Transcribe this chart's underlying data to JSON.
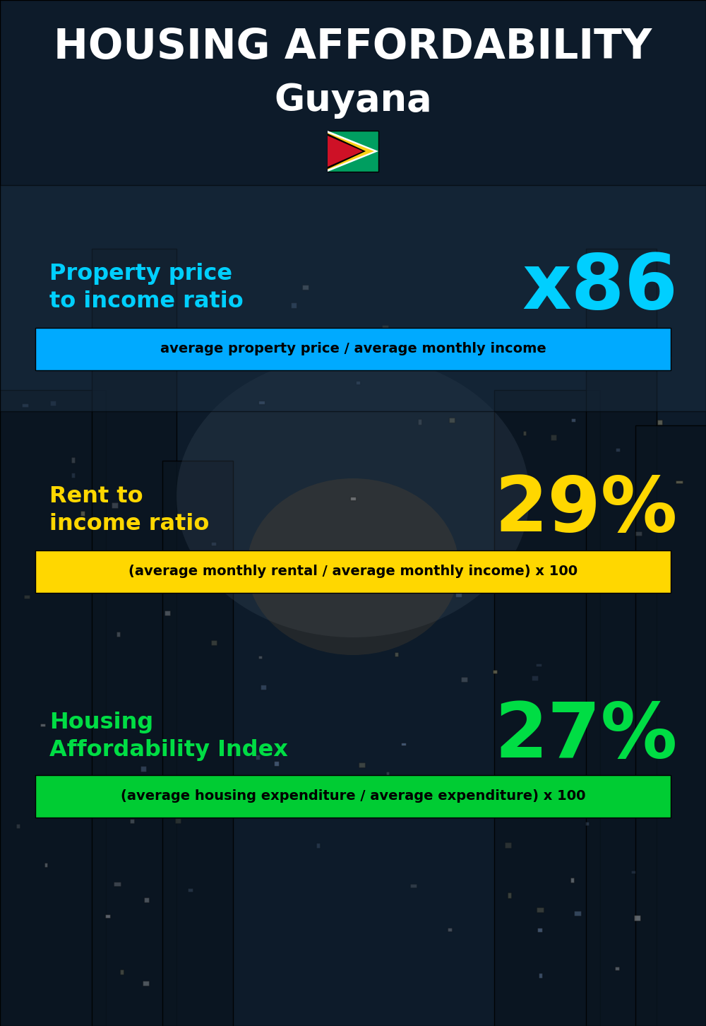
{
  "title_main": "HOUSING AFFORDABILITY",
  "title_country": "Guyana",
  "bg_color": "#0d1b2a",
  "section1_label": "Property price\nto income ratio",
  "section1_value": "x86",
  "section1_label_color": "#00cfff",
  "section1_value_color": "#00cfff",
  "section1_banner_text": "average property price / average monthly income",
  "section1_banner_bg": "#00aaff",
  "section1_banner_color": "#000000",
  "section2_label": "Rent to\nincome ratio",
  "section2_value": "29%",
  "section2_label_color": "#FFD700",
  "section2_value_color": "#FFD700",
  "section2_banner_text": "(average monthly rental / average monthly income) x 100",
  "section2_banner_bg": "#FFD700",
  "section2_banner_color": "#000000",
  "section3_label": "Housing\nAffordability Index",
  "section3_value": "27%",
  "section3_label_color": "#00dd44",
  "section3_value_color": "#00dd44",
  "section3_banner_text": "(average housing expenditure / average expenditure) x 100",
  "section3_banner_bg": "#00cc33",
  "section3_banner_color": "#000000",
  "title_color": "#ffffff",
  "country_color": "#ffffff",
  "overlay1_color": "#1a2d40",
  "overlay1_alpha": 0.55
}
